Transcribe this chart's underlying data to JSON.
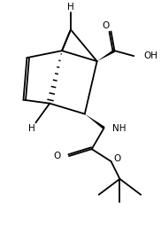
{
  "background": "#ffffff",
  "line_color": "#000000",
  "lw": 1.3,
  "figsize": [
    1.82,
    2.73
  ],
  "dpi": 100,
  "xlim": [
    0,
    9
  ],
  "ylim": [
    0,
    13.5
  ]
}
